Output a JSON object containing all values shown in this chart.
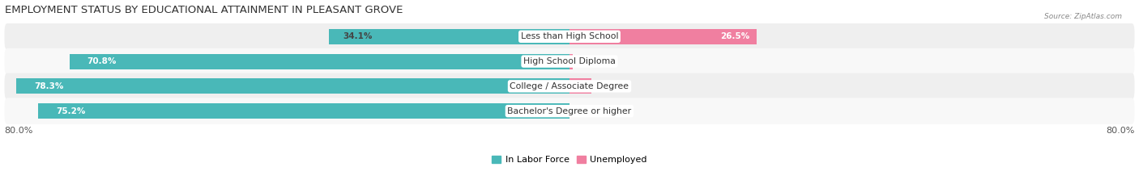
{
  "title": "EMPLOYMENT STATUS BY EDUCATIONAL ATTAINMENT IN PLEASANT GROVE",
  "source": "Source: ZipAtlas.com",
  "categories": [
    "Less than High School",
    "High School Diploma",
    "College / Associate Degree",
    "Bachelor's Degree or higher"
  ],
  "in_labor_force": [
    34.1,
    70.8,
    78.3,
    75.2
  ],
  "unemployed": [
    26.5,
    0.5,
    3.1,
    0.0
  ],
  "labor_color": "#49b8b8",
  "unemployed_color": "#f07fa0",
  "row_bg_colors": [
    "#efefef",
    "#f8f8f8",
    "#efefef",
    "#f8f8f8"
  ],
  "axis_limit": 80.0,
  "bar_height": 0.62,
  "title_fontsize": 9.5,
  "label_fontsize": 7.8,
  "value_fontsize": 7.5,
  "tick_fontsize": 8.0,
  "legend_fontsize": 8.0,
  "background_color": "#ffffff"
}
